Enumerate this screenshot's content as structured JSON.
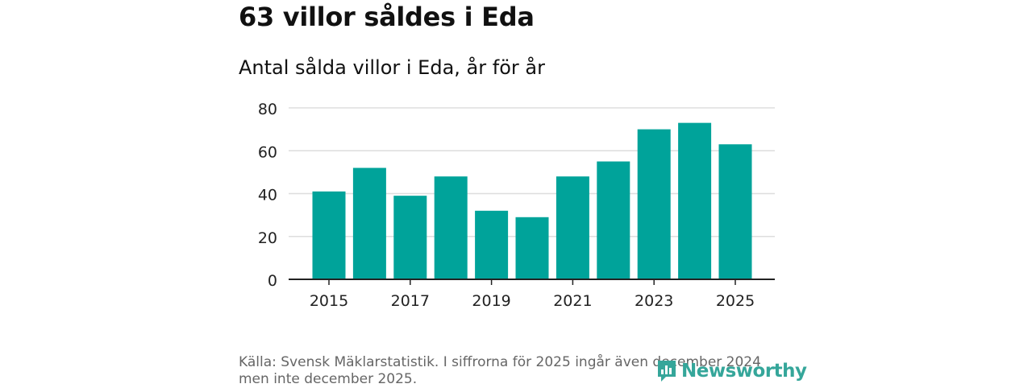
{
  "header": {
    "title": "63 villor såldes i Eda",
    "subtitle": "Antal sålda villor i Eda, år för år"
  },
  "chart_data": {
    "type": "bar",
    "title": "63 villor såldes i Eda",
    "subtitle": "Antal sålda villor i Eda, år för år",
    "xlabel": "",
    "ylabel": "",
    "categories": [
      "2015",
      "2016",
      "2017",
      "2018",
      "2019",
      "2020",
      "2021",
      "2022",
      "2023",
      "2024",
      "2025"
    ],
    "values": [
      41,
      52,
      39,
      48,
      32,
      29,
      48,
      55,
      70,
      73,
      63
    ],
    "x_tick_labels": [
      "2015",
      "2017",
      "2019",
      "2021",
      "2023",
      "2025"
    ],
    "y_ticks": [
      0,
      20,
      40,
      60,
      80
    ],
    "ylim": [
      0,
      80
    ],
    "grid": true,
    "colors": {
      "bar": "#00a39a",
      "grid": "#dddddd",
      "axis": "#222222"
    }
  },
  "footer": {
    "source_line1": "Källa: Svensk Mäklarstatistik. I siffrorna för 2025 ingår även december 2024",
    "source_line2": "men inte december 2025.",
    "brand": "Newsworthy",
    "brand_color": "#35a69a",
    "brand_icon": "bar-chart-speech-bubble-icon"
  }
}
